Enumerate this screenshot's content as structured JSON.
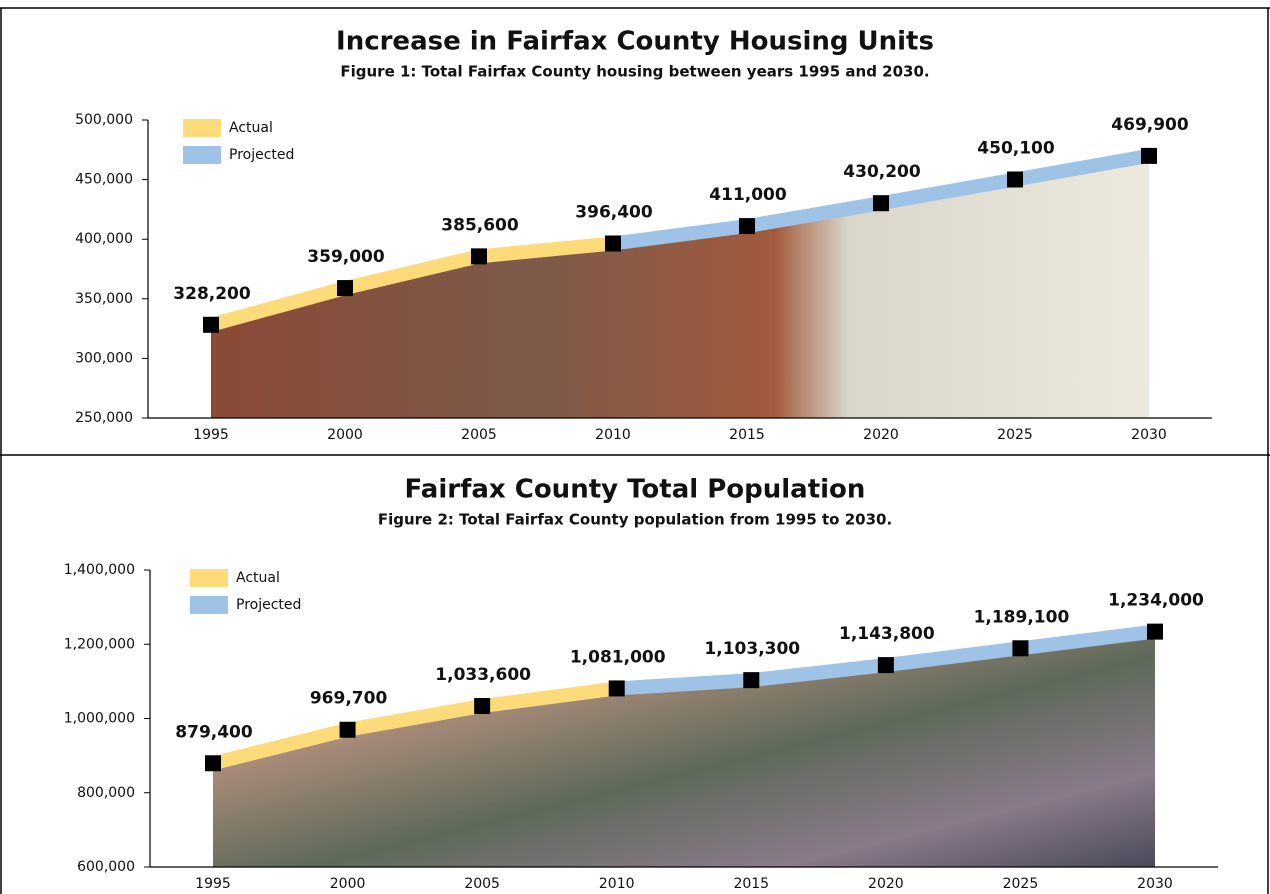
{
  "chart_data": [
    {
      "type": "line",
      "title": "Increase in Fairfax County Housing Units",
      "subtitle": "Figure 1: Total Fairfax County housing between years 1995 and 2030.",
      "categories": [
        "1995",
        "2000",
        "2005",
        "2010",
        "2015",
        "2020",
        "2025",
        "2030"
      ],
      "series": [
        {
          "name": "Actual",
          "color": "#fddb7a",
          "values": [
            328200,
            359000,
            385600,
            396400,
            null,
            null,
            null,
            null
          ],
          "value_labels": [
            "328,200",
            "359,000",
            "385,600",
            "396,400",
            null,
            null,
            null,
            null
          ]
        },
        {
          "name": "Projected",
          "color": "#9fc3e6",
          "values": [
            null,
            null,
            null,
            396400,
            411000,
            430200,
            450100,
            469900
          ],
          "value_labels": [
            null,
            null,
            null,
            null,
            "411,000",
            "430,200",
            "450,100",
            "469,900"
          ]
        }
      ],
      "ylim": [
        250000,
        500000
      ],
      "yticks": [
        {
          "value": 250000,
          "label": "250,000"
        },
        {
          "value": 300000,
          "label": "300,000"
        },
        {
          "value": 350000,
          "label": "350,000"
        },
        {
          "value": 400000,
          "label": "400,000"
        },
        {
          "value": 450000,
          "label": "450,000"
        },
        {
          "value": 500000,
          "label": "500,000"
        }
      ],
      "legend": "upper left"
    },
    {
      "type": "line",
      "title": "Fairfax County Total Population",
      "subtitle": "Figure 2: Total Fairfax County population from 1995 to 2030.",
      "categories": [
        "1995",
        "2000",
        "2005",
        "2010",
        "2015",
        "2020",
        "2025",
        "2030"
      ],
      "series": [
        {
          "name": "Actual",
          "color": "#fddb7a",
          "values": [
            879400,
            969700,
            1033600,
            1081000,
            null,
            null,
            null,
            null
          ],
          "value_labels": [
            "879,400",
            "969,700",
            "1,033,600",
            "1,081,000",
            null,
            null,
            null,
            null
          ]
        },
        {
          "name": "Projected",
          "color": "#9fc3e6",
          "values": [
            null,
            null,
            null,
            1081000,
            1103300,
            1143800,
            1189100,
            1234000
          ],
          "value_labels": [
            null,
            null,
            null,
            null,
            "1,103,300",
            "1,143,800",
            "1,189,100",
            "1,234,000"
          ]
        }
      ],
      "ylim": [
        600000,
        1400000
      ],
      "yticks": [
        {
          "value": 600000,
          "label": "600,000"
        },
        {
          "value": 800000,
          "label": "800,000"
        },
        {
          "value": 1000000,
          "label": "1,000,000"
        },
        {
          "value": 1200000,
          "label": "1,200,000"
        },
        {
          "value": 1400000,
          "label": "1,400,000"
        }
      ],
      "legend": "upper left"
    }
  ]
}
